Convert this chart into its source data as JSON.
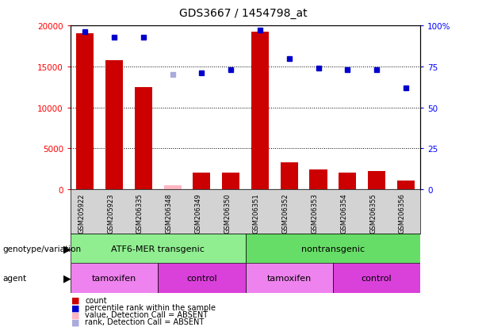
{
  "title": "GDS3667 / 1454798_at",
  "samples": [
    "GSM205922",
    "GSM205923",
    "GSM206335",
    "GSM206348",
    "GSM206349",
    "GSM206350",
    "GSM206351",
    "GSM206352",
    "GSM206353",
    "GSM206354",
    "GSM206355",
    "GSM206356"
  ],
  "counts": [
    19000,
    15800,
    12500,
    500,
    2000,
    2000,
    19200,
    3300,
    2400,
    2000,
    2200,
    1100
  ],
  "counts_absent": [
    false,
    false,
    false,
    true,
    false,
    false,
    false,
    false,
    false,
    false,
    false,
    false
  ],
  "percentile_ranks": [
    96,
    93,
    93,
    70,
    71,
    73,
    97,
    80,
    74,
    73,
    73,
    62
  ],
  "ranks_absent": [
    false,
    false,
    false,
    true,
    false,
    false,
    false,
    false,
    false,
    false,
    false,
    false
  ],
  "groups_geno": [
    {
      "label": "ATF6-MER transgenic",
      "start": 0,
      "end": 5,
      "color": "#90EE90"
    },
    {
      "label": "nontransgenic",
      "start": 6,
      "end": 11,
      "color": "#66DD66"
    }
  ],
  "groups_agent": [
    {
      "label": "tamoxifen",
      "start": 0,
      "end": 2,
      "color": "#EE82EE"
    },
    {
      "label": "control",
      "start": 3,
      "end": 5,
      "color": "#DA40DA"
    },
    {
      "label": "tamoxifen",
      "start": 6,
      "end": 8,
      "color": "#EE82EE"
    },
    {
      "label": "control",
      "start": 9,
      "end": 11,
      "color": "#DA40DA"
    }
  ],
  "bar_color_present": "#CC0000",
  "bar_color_absent": "#FFB6C1",
  "dot_color_present": "#0000CC",
  "dot_color_absent": "#AAAADD",
  "ylim_left": [
    0,
    20000
  ],
  "ylim_right": [
    0,
    100
  ],
  "left_yticks": [
    0,
    5000,
    10000,
    15000,
    20000
  ],
  "right_yticks": [
    0,
    25,
    50,
    75,
    100
  ],
  "grid_values": [
    5000,
    10000,
    15000
  ],
  "bg_gray": "#D3D3D3"
}
